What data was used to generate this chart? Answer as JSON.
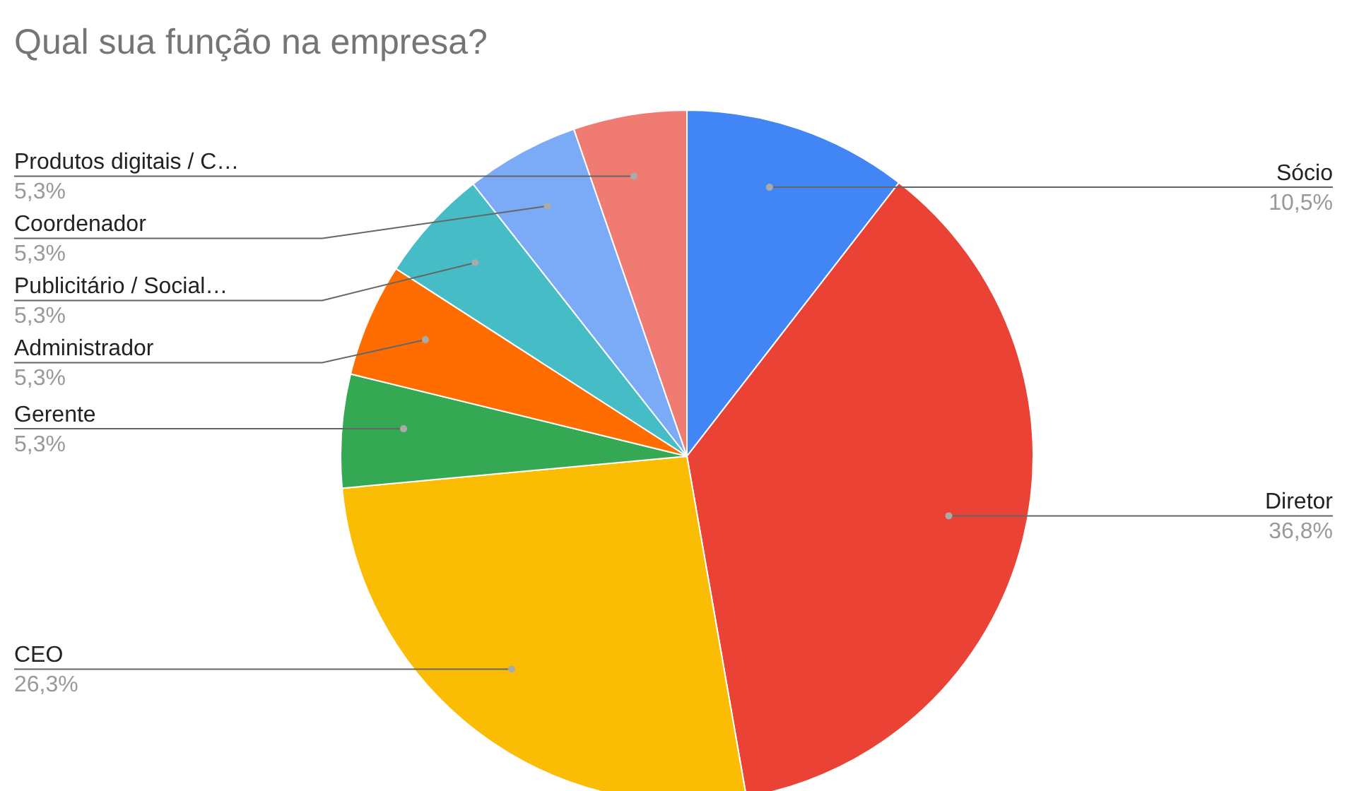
{
  "chart_data": {
    "type": "pie",
    "title": "Qual sua função na empresa?",
    "categories": [
      "Sócio",
      "Diretor",
      "CEO",
      "Gerente",
      "Administrador",
      "Publicitário / Social…",
      "Coordenador",
      "Produtos digitais / C…"
    ],
    "values": [
      10.5,
      36.8,
      26.3,
      5.3,
      5.3,
      5.3,
      5.3,
      5.3
    ],
    "value_labels": [
      "10,5%",
      "36,8%",
      "26,3%",
      "5,3%",
      "5,3%",
      "5,3%",
      "5,3%",
      "5,3%"
    ],
    "colors": [
      "#4285f4",
      "#ea4335",
      "#fbbc04",
      "#34a853",
      "#ff6d01",
      "#46bdc6",
      "#7baaf7",
      "#f07b72"
    ],
    "legend": false
  }
}
